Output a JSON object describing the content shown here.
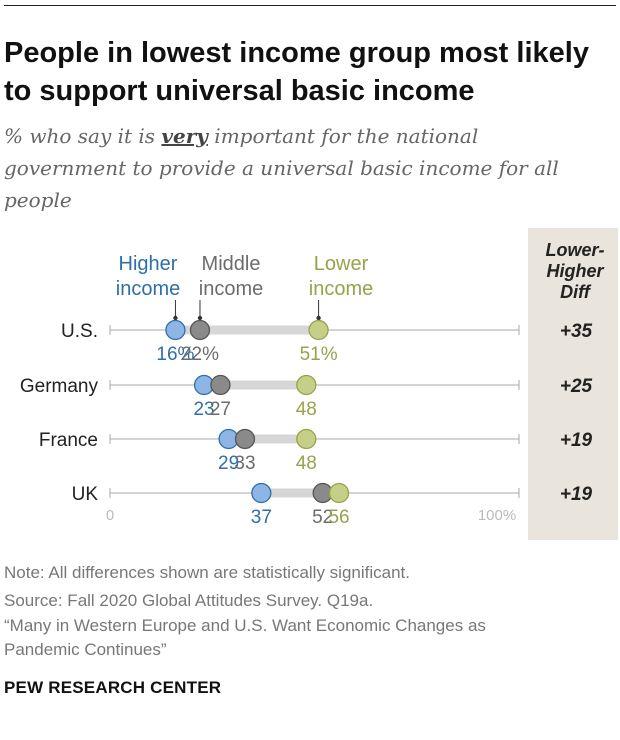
{
  "title": "People in lowest income group most likely to support universal basic income",
  "subtitle": {
    "before": "% who say it is ",
    "emphasis": "very",
    "after": " important for the national government to provide a universal basic income for all people"
  },
  "chart_data": {
    "type": "dot-plot",
    "xlim": [
      0,
      100
    ],
    "axis_labels": {
      "min": "0",
      "max": "100%"
    },
    "legend": [
      {
        "name": "Higher income",
        "lines": [
          "Higher",
          "income"
        ],
        "color": "#2e6fa8",
        "fill": "#8db6e6"
      },
      {
        "name": "Middle income",
        "lines": [
          "Middle",
          "income"
        ],
        "color": "#6c6c6c",
        "fill": "#8a8a8a"
      },
      {
        "name": "Lower income",
        "lines": [
          "Lower",
          "income"
        ],
        "color": "#99a24a",
        "fill": "#c5cf87"
      }
    ],
    "diff_header": [
      "Lower-",
      "Higher",
      "Diff"
    ],
    "categories": [
      "U.S.",
      "Germany",
      "France",
      "UK"
    ],
    "series": [
      {
        "name": "Higher income",
        "values": [
          16,
          23,
          29,
          37
        ],
        "labels": [
          "16%",
          "23",
          "29",
          "37"
        ]
      },
      {
        "name": "Middle income",
        "values": [
          22,
          27,
          33,
          52
        ],
        "labels": [
          "22%",
          "27",
          "33",
          "52"
        ]
      },
      {
        "name": "Lower income",
        "values": [
          51,
          48,
          48,
          56
        ],
        "labels": [
          "51%",
          "48",
          "48",
          "56"
        ]
      }
    ],
    "diffs": [
      "+35",
      "+25",
      "+19",
      "+19"
    ]
  },
  "notes": [
    "Note: All differences shown are statistically significant.",
    "Source: Fall 2020 Global Attitudes Survey. Q19a.",
    "“Many in Western Europe and U.S. Want Economic Changes as",
    "Pandemic Continues”"
  ],
  "org": "PEW RESEARCH CENTER"
}
